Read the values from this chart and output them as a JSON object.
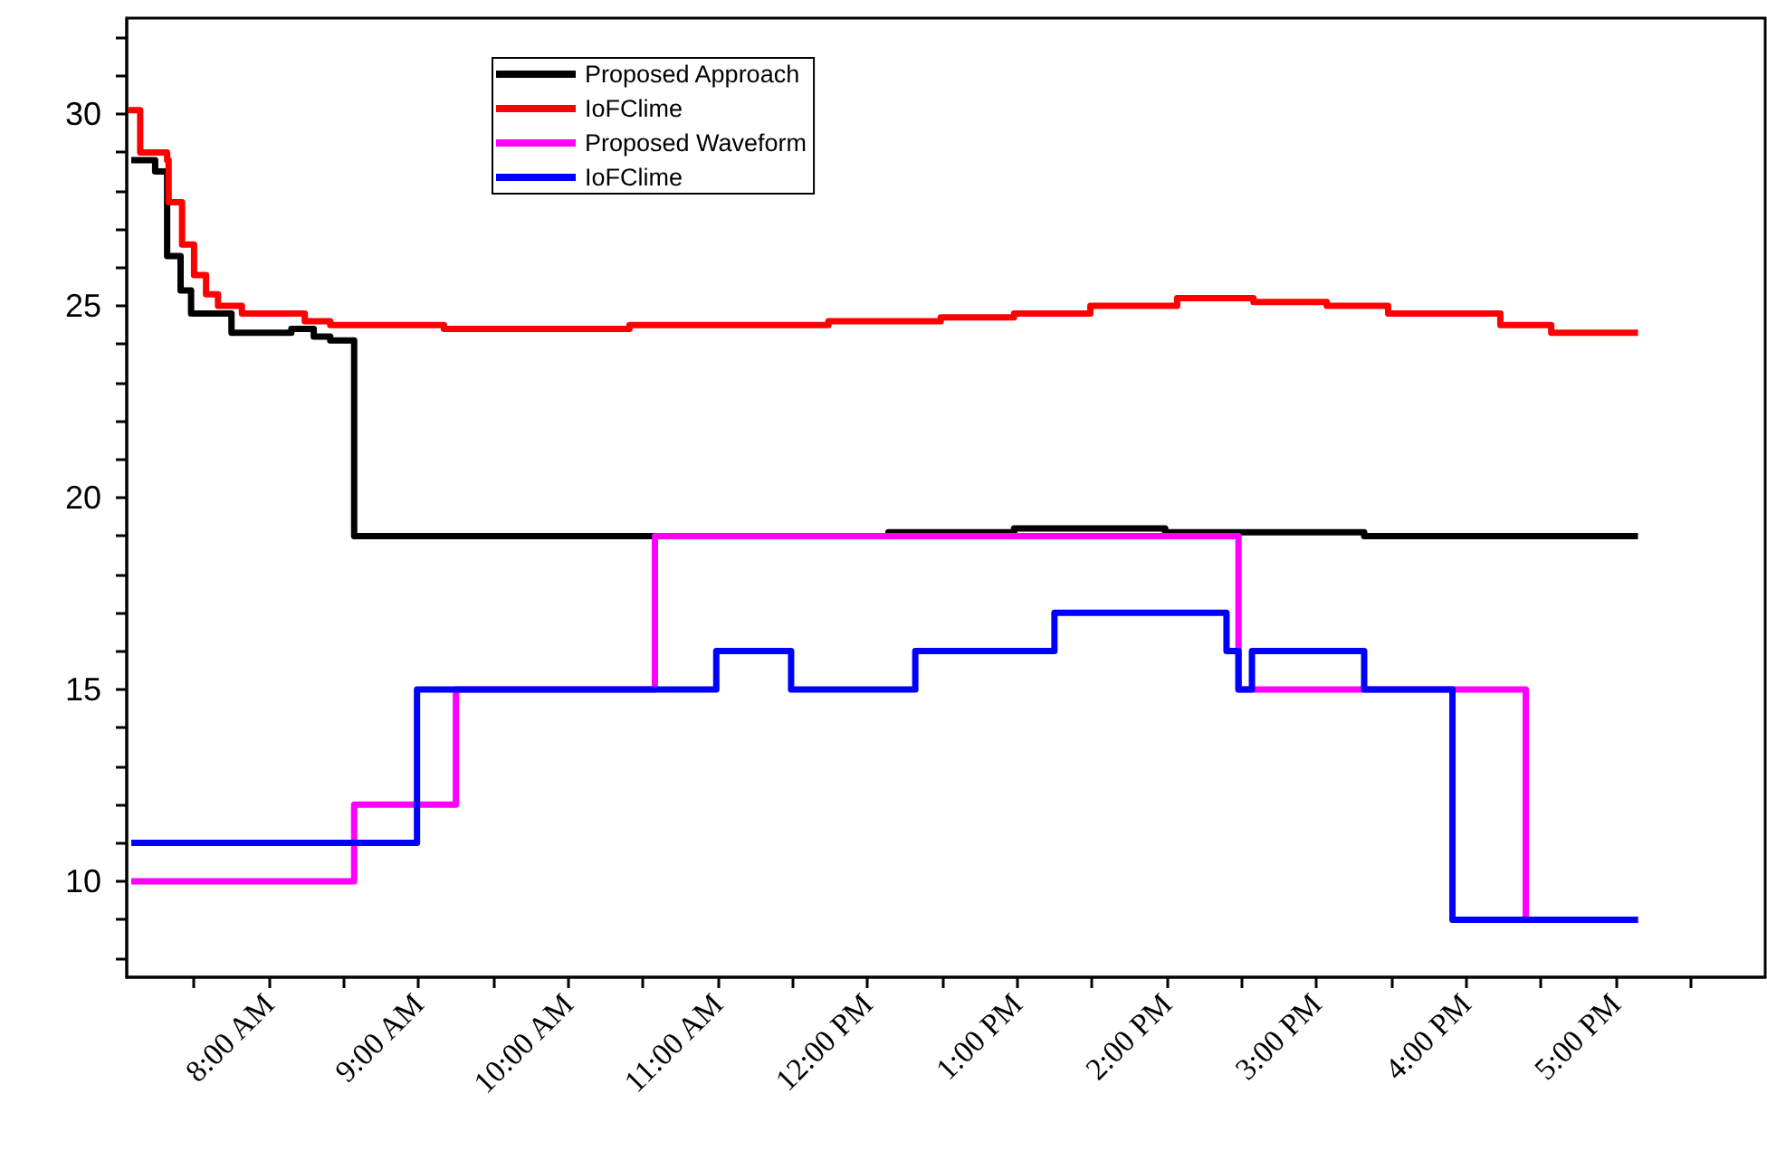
{
  "chart_data": {
    "type": "step",
    "xlim": [
      7.05,
      18
    ],
    "ylim": [
      7.5,
      32.5
    ],
    "xticks": [
      {
        "value": 7.5,
        "label": null
      },
      {
        "value": 8,
        "label": "8:00 AM"
      },
      {
        "value": 8.5,
        "label": null
      },
      {
        "value": 9,
        "label": "9:00 AM"
      },
      {
        "value": 9.5,
        "label": null
      },
      {
        "value": 10,
        "label": "10:00 AM"
      },
      {
        "value": 10.5,
        "label": null
      },
      {
        "value": 11,
        "label": "11:00 AM"
      },
      {
        "value": 11.5,
        "label": null
      },
      {
        "value": 12,
        "label": "12:00 PM"
      },
      {
        "value": 12.5,
        "label": null
      },
      {
        "value": 13,
        "label": "1:00 PM"
      },
      {
        "value": 13.5,
        "label": null
      },
      {
        "value": 14,
        "label": "2:00 PM"
      },
      {
        "value": 14.5,
        "label": null
      },
      {
        "value": 15,
        "label": "3:00 PM"
      },
      {
        "value": 15.5,
        "label": null
      },
      {
        "value": 16,
        "label": "4:00 PM"
      },
      {
        "value": 16.5,
        "label": null
      },
      {
        "value": 17,
        "label": "5:00 PM"
      },
      {
        "value": 17.5,
        "label": null
      }
    ],
    "yticks": [
      {
        "value": 8,
        "label": null
      },
      {
        "value": 9,
        "label": null
      },
      10,
      {
        "value": 11,
        "label": null
      },
      {
        "value": 12,
        "label": null
      },
      {
        "value": 13,
        "label": null
      },
      {
        "value": 14,
        "label": null
      },
      15,
      {
        "value": 16,
        "label": null
      },
      {
        "value": 17,
        "label": null
      },
      {
        "value": 18,
        "label": null
      },
      {
        "value": 19,
        "label": null
      },
      20,
      {
        "value": 21,
        "label": null
      },
      {
        "value": 22,
        "label": null
      },
      {
        "value": 23,
        "label": null
      },
      {
        "value": 24,
        "label": null
      },
      25,
      {
        "value": 26,
        "label": null
      },
      {
        "value": 27,
        "label": null
      },
      {
        "value": 28,
        "label": null
      },
      {
        "value": 29,
        "label": null
      },
      30,
      {
        "value": 31,
        "label": null
      },
      {
        "value": 32,
        "label": null
      }
    ],
    "grid": false,
    "legend": "top",
    "marker": "none",
    "line_style": "solid",
    "series": [
      {
        "name": "Proposed Approach",
        "color": "#000000",
        "x": [
          7.08,
          7.24,
          7.32,
          7.41,
          7.48,
          7.75,
          8.15,
          8.3,
          8.41,
          8.57,
          12.14,
          12.98,
          13.99,
          15.32,
          17.15
        ],
        "values": [
          28.8,
          28.5,
          26.3,
          25.4,
          24.8,
          24.3,
          24.4,
          24.2,
          24.1,
          19.0,
          19.1,
          19.2,
          19.1,
          19.0,
          19.0
        ]
      },
      {
        "name": "IoFClime",
        "color": "#ff0000",
        "x": [
          7.06,
          7.14,
          7.32,
          7.33,
          7.42,
          7.5,
          7.58,
          7.66,
          7.82,
          8.24,
          8.41,
          9.17,
          10.41,
          11.74,
          12.49,
          12.98,
          13.49,
          14.07,
          14.58,
          15.07,
          15.48,
          16.23,
          16.57,
          17.15
        ],
        "values": [
          30.1,
          29.0,
          28.8,
          27.7,
          26.6,
          25.8,
          25.3,
          25.0,
          24.8,
          24.6,
          24.5,
          24.4,
          24.5,
          24.6,
          24.7,
          24.8,
          25.0,
          25.2,
          25.1,
          25.0,
          24.8,
          24.5,
          24.3,
          24.3
        ]
      },
      {
        "name": "Proposed Waveform",
        "color": "#ff00ff",
        "x": [
          7.08,
          8.57,
          9.25,
          10.58,
          14.48,
          16.4,
          17.15
        ],
        "values": [
          10,
          12,
          15,
          19,
          15,
          9,
          9
        ]
      },
      {
        "name": "IoFClime",
        "color": "#0000ff",
        "x": [
          7.08,
          8.99,
          10.99,
          11.49,
          12.32,
          13.25,
          14.4,
          14.48,
          14.57,
          15.32,
          15.91,
          17.15
        ],
        "values": [
          11,
          15,
          16,
          15,
          16,
          17,
          16,
          15,
          16,
          15,
          9,
          9
        ]
      }
    ]
  }
}
